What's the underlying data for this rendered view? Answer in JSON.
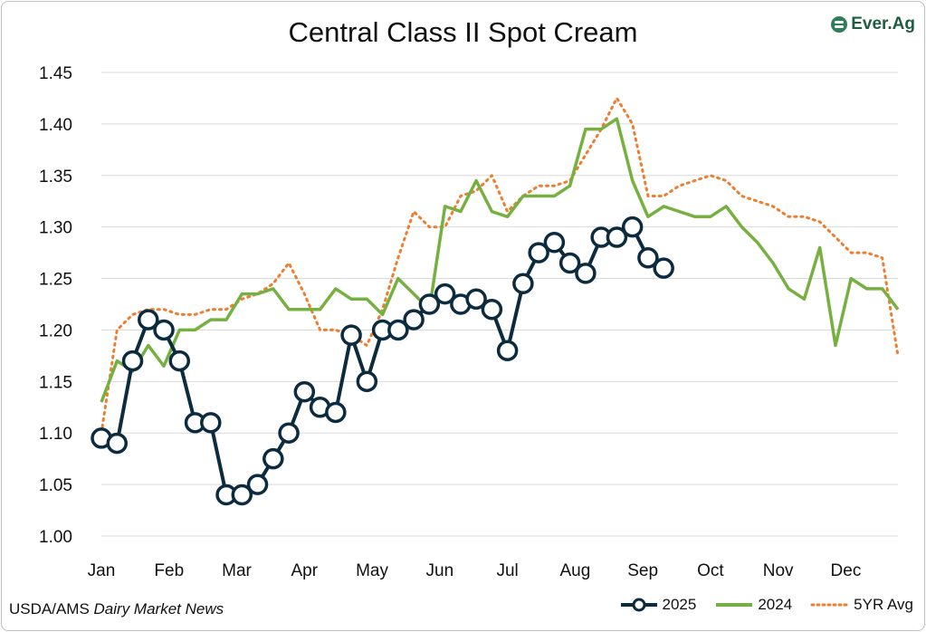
{
  "title": "Central Class II Spot Cream",
  "logo_text": "Ever.Ag",
  "source": {
    "prefix": "USDA/AMS ",
    "italic": "Dairy Market News"
  },
  "colors": {
    "s2025": "#0d2b3e",
    "s2024": "#76b041",
    "avg": "#ed7d31",
    "grid": "#d9d9d9"
  },
  "chart_data": {
    "type": "line",
    "title": "Central Class II Spot Cream",
    "x_ticks": [
      "Jan",
      "Feb",
      "Mar",
      "Apr",
      "May",
      "Jun",
      "Jul",
      "Aug",
      "Sep",
      "Oct",
      "Nov",
      "Dec"
    ],
    "x_unit": "week",
    "xlim": [
      0,
      51
    ],
    "ylim": [
      1.0,
      1.45
    ],
    "y_ticks": [
      "1.00",
      "1.05",
      "1.10",
      "1.15",
      "1.20",
      "1.25",
      "1.30",
      "1.35",
      "1.40",
      "1.45"
    ],
    "grid": "horizontal",
    "legend_position": "bottom-right",
    "series": [
      {
        "name": "2025",
        "style": "line-circle-markers",
        "points": [
          [
            0,
            1.095
          ],
          [
            1,
            1.09
          ],
          [
            2,
            1.17
          ],
          [
            3,
            1.21
          ],
          [
            4,
            1.2
          ],
          [
            5,
            1.17
          ],
          [
            6,
            1.11
          ],
          [
            7,
            1.11
          ],
          [
            8,
            1.04
          ],
          [
            9,
            1.04
          ],
          [
            10,
            1.05
          ],
          [
            11,
            1.075
          ],
          [
            12,
            1.1
          ],
          [
            13,
            1.14
          ],
          [
            14,
            1.125
          ],
          [
            15,
            1.12
          ],
          [
            16,
            1.195
          ],
          [
            17,
            1.15
          ],
          [
            18,
            1.2
          ],
          [
            19,
            1.2
          ],
          [
            20,
            1.21
          ],
          [
            21,
            1.225
          ],
          [
            22,
            1.235
          ],
          [
            23,
            1.225
          ],
          [
            24,
            1.23
          ],
          [
            25,
            1.22
          ],
          [
            26,
            1.18
          ],
          [
            27,
            1.245
          ],
          [
            28,
            1.275
          ],
          [
            29,
            1.285
          ],
          [
            30,
            1.265
          ],
          [
            31,
            1.255
          ],
          [
            32,
            1.29
          ],
          [
            33,
            1.29
          ],
          [
            34,
            1.3
          ],
          [
            35,
            1.27
          ],
          [
            36,
            1.26
          ]
        ]
      },
      {
        "name": "2024",
        "style": "solid",
        "points": [
          [
            0,
            1.13
          ],
          [
            1,
            1.17
          ],
          [
            2,
            1.16
          ],
          [
            3,
            1.185
          ],
          [
            4,
            1.165
          ],
          [
            5,
            1.2
          ],
          [
            6,
            1.2
          ],
          [
            7,
            1.21
          ],
          [
            8,
            1.21
          ],
          [
            9,
            1.235
          ],
          [
            10,
            1.235
          ],
          [
            11,
            1.24
          ],
          [
            12,
            1.22
          ],
          [
            13,
            1.22
          ],
          [
            14,
            1.22
          ],
          [
            15,
            1.24
          ],
          [
            16,
            1.23
          ],
          [
            17,
            1.23
          ],
          [
            18,
            1.215
          ],
          [
            19,
            1.25
          ],
          [
            20,
            1.235
          ],
          [
            21,
            1.22
          ],
          [
            22,
            1.32
          ],
          [
            23,
            1.315
          ],
          [
            24,
            1.345
          ],
          [
            25,
            1.315
          ],
          [
            26,
            1.31
          ],
          [
            27,
            1.33
          ],
          [
            28,
            1.33
          ],
          [
            29,
            1.33
          ],
          [
            30,
            1.34
          ],
          [
            31,
            1.395
          ],
          [
            32,
            1.395
          ],
          [
            33,
            1.405
          ],
          [
            34,
            1.345
          ],
          [
            35,
            1.31
          ],
          [
            36,
            1.32
          ],
          [
            37,
            1.315
          ],
          [
            38,
            1.31
          ],
          [
            39,
            1.31
          ],
          [
            40,
            1.32
          ],
          [
            41,
            1.3
          ],
          [
            42,
            1.285
          ],
          [
            43,
            1.265
          ],
          [
            44,
            1.24
          ],
          [
            45,
            1.23
          ],
          [
            46,
            1.28
          ],
          [
            47,
            1.185
          ],
          [
            48,
            1.25
          ],
          [
            49,
            1.24
          ],
          [
            50,
            1.24
          ],
          [
            51,
            1.22
          ]
        ]
      },
      {
        "name": "5YR Avg",
        "style": "dotted",
        "points": [
          [
            0,
            1.1
          ],
          [
            1,
            1.2
          ],
          [
            2,
            1.215
          ],
          [
            3,
            1.22
          ],
          [
            4,
            1.22
          ],
          [
            5,
            1.215
          ],
          [
            6,
            1.215
          ],
          [
            7,
            1.22
          ],
          [
            8,
            1.22
          ],
          [
            9,
            1.23
          ],
          [
            10,
            1.235
          ],
          [
            11,
            1.245
          ],
          [
            12,
            1.265
          ],
          [
            13,
            1.235
          ],
          [
            14,
            1.2
          ],
          [
            15,
            1.2
          ],
          [
            16,
            1.195
          ],
          [
            17,
            1.185
          ],
          [
            18,
            1.22
          ],
          [
            19,
            1.27
          ],
          [
            20,
            1.315
          ],
          [
            21,
            1.3
          ],
          [
            22,
            1.3
          ],
          [
            23,
            1.33
          ],
          [
            24,
            1.335
          ],
          [
            25,
            1.35
          ],
          [
            26,
            1.315
          ],
          [
            27,
            1.33
          ],
          [
            28,
            1.34
          ],
          [
            29,
            1.34
          ],
          [
            30,
            1.345
          ],
          [
            31,
            1.37
          ],
          [
            32,
            1.395
          ],
          [
            33,
            1.425
          ],
          [
            34,
            1.4
          ],
          [
            35,
            1.33
          ],
          [
            36,
            1.33
          ],
          [
            37,
            1.34
          ],
          [
            38,
            1.345
          ],
          [
            39,
            1.35
          ],
          [
            40,
            1.345
          ],
          [
            41,
            1.33
          ],
          [
            42,
            1.325
          ],
          [
            43,
            1.32
          ],
          [
            44,
            1.31
          ],
          [
            45,
            1.31
          ],
          [
            46,
            1.305
          ],
          [
            47,
            1.29
          ],
          [
            48,
            1.275
          ],
          [
            49,
            1.275
          ],
          [
            50,
            1.27
          ],
          [
            51,
            1.175
          ]
        ]
      }
    ]
  }
}
